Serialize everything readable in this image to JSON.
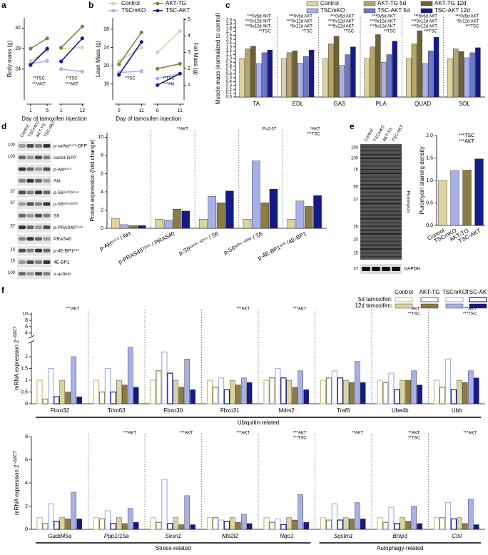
{
  "chart_data": [
    {
      "type": "line",
      "panel_label": "a",
      "ylabel": "Body mass (g)",
      "xlabel": "Day of tamoxifen injection",
      "ylim": [
        18,
        34
      ],
      "yticks": [
        24,
        28,
        32
      ],
      "panels": [
        {
          "xlim": [
            0,
            6
          ],
          "xticks": [
            1,
            5
          ],
          "x": [
            1,
            5
          ],
          "annotations": [
            "**TSC",
            "***AKT"
          ],
          "series": [
            {
              "color": "#ddd3a0",
              "values": [
                25.6,
                27.5
              ]
            },
            {
              "color": "#a7b0e8",
              "values": [
                25.0,
                25.6
              ]
            },
            {
              "color": "#8b7b45",
              "values": [
                28.0,
                30.0
              ]
            },
            {
              "color": "#141a86",
              "values": [
                24.8,
                28.0
              ]
            }
          ]
        },
        {
          "xlim": [
            0,
            13
          ],
          "xticks": [
            1,
            12
          ],
          "x": [
            1,
            12
          ],
          "annotations": [
            "**TSC",
            "***AKT"
          ],
          "series": [
            {
              "color": "#ddd3a0",
              "values": [
                28.0,
                28.2
              ]
            },
            {
              "color": "#a7b0e8",
              "values": [
                24.0,
                23.5
              ]
            },
            {
              "color": "#8b7b45",
              "values": [
                28.2,
                32.3
              ]
            },
            {
              "color": "#141a86",
              "values": [
                25.5,
                30.0
              ]
            }
          ]
        }
      ]
    },
    {
      "type": "line",
      "panel_label": "b",
      "ylabel": "Lean Mass (g)",
      "y2label": "Fat Mass (g)",
      "xlabel": "Day of tamoxifen injection",
      "ylim": [
        12.5,
        30.5
      ],
      "yticks": [
        16,
        20,
        24,
        28
      ],
      "y2lim": [
        0.1,
        5.1
      ],
      "y2ticks": [
        1,
        2,
        3,
        4,
        5
      ],
      "legend": [
        {
          "name": "Control",
          "color": "#ddd3a0"
        },
        {
          "name": "TSCmKO",
          "color": "#a7b0e8"
        },
        {
          "name": "AKT-TG",
          "color": "#8b7b45"
        },
        {
          "name": "TSC-AKT",
          "color": "#141a86"
        }
      ],
      "panels": [
        {
          "xlim": [
            -2,
            13
          ],
          "xticks": [
            0,
            11
          ],
          "x": [
            0,
            11
          ],
          "annotations": [
            "*TSC"
          ],
          "series": [
            {
              "color": "#ddd3a0",
              "values": [
                21.0,
                24.0
              ]
            },
            {
              "color": "#a7b0e8",
              "values": [
                18.5,
                18.8
              ]
            },
            {
              "color": "#8b7b45",
              "values": [
                20.3,
                27.3
              ]
            },
            {
              "color": "#141a86",
              "values": [
                18.0,
                25.2
              ]
            }
          ]
        },
        {
          "xlim": [
            -2,
            13
          ],
          "xticks": [
            0,
            11
          ],
          "x": [
            0,
            11
          ],
          "annotations": [
            "**TSC",
            "***Akt"
          ],
          "series": [
            {
              "color": "#ddd3a0",
              "axis": "y2",
              "values": [
                3.0,
                4.3
              ]
            },
            {
              "color": "#a7b0e8",
              "axis": "y2",
              "values": [
                1.4,
                1.7
              ]
            },
            {
              "color": "#8b7b45",
              "axis": "y2",
              "values": [
                2.0,
                2.3
              ]
            },
            {
              "color": "#141a86",
              "axis": "y2",
              "values": [
                1.0,
                1.7
              ]
            }
          ]
        }
      ]
    },
    {
      "type": "bar",
      "panel_label": "c",
      "ylabel": "Muscle mass (normalized to control)",
      "separators": true,
      "ylim": [
        0,
        2.0
      ],
      "yticks": [
        {
          "value": 0,
          "label": "0.0"
        },
        0.1,
        0.2,
        0.3,
        0.4,
        0.5,
        0.6,
        0.7,
        0.8,
        0.9,
        {
          "value": 1,
          "label": "1.0"
        },
        1.1,
        1.2,
        1.3,
        1.4,
        1.5,
        1.6,
        1.7,
        1.8,
        1.9,
        {
          "value": 2,
          "label": "2.0"
        }
      ],
      "categories": [
        "TA",
        "EDL",
        "GAS",
        "PLA",
        "QUAD",
        "SOL"
      ],
      "series": [
        {
          "name": "Control",
          "color": "#ddd3a0",
          "values": [
            1.0,
            1.0,
            1.0,
            1.0,
            1.0,
            1.0
          ]
        },
        {
          "name": "AKT-TG 5d",
          "color": "#b5a46a",
          "values": [
            1.25,
            1.15,
            1.38,
            1.3,
            1.38,
            1.25
          ]
        },
        {
          "name": "AKT-TG 12d",
          "color": "#6e6235",
          "values": [
            1.32,
            1.2,
            1.58,
            1.62,
            1.72,
            1.18
          ]
        },
        {
          "name": "TSCmKO",
          "color": "#a7b0e8",
          "values": [
            0.87,
            0.88,
            0.82,
            0.9,
            0.87,
            1.02
          ]
        },
        {
          "name": "TSC-AKT 5d",
          "color": "#6c78c8",
          "values": [
            1.15,
            1.05,
            1.1,
            1.1,
            1.2,
            1.15
          ]
        },
        {
          "name": "TSC-AKT 12d",
          "color": "#141a86",
          "values": [
            1.22,
            1.22,
            1.3,
            1.45,
            1.55,
            1.28
          ]
        }
      ],
      "annotations": [
        [
          "***0v5d AKT",
          "***0v12d AKT",
          "***5v12d AKT",
          "**TSC"
        ],
        [
          "***0v5d AKT",
          "***0v12d AKT",
          "*5v12d AKT",
          "*TSC"
        ],
        [
          "***0v5d AKT",
          "***0v12d AKT",
          "***5v12d AKT",
          "*TSC"
        ],
        [
          "***0v5d AKT",
          "***0v12d AKT",
          "***5v12d AKT",
          "**TSC"
        ],
        [
          "***0v5d AKT",
          "***0v12d AKT",
          "***5v12d AKT",
          "***TSC"
        ],
        [
          "***0v5d AKT",
          "*5v12d AKT",
          "***TSC"
        ]
      ]
    },
    {
      "type": "bar",
      "ylabel": "Protein expression (fold change)",
      "separators": true,
      "rotate_labels": true,
      "ylim": [
        0,
        10.5
      ],
      "yticks": [
        0,
        2,
        4,
        6,
        8,
        10
      ],
      "categories": [
        "p-Aktˢ⁴⁷³ / Akt",
        "p-PRAS40ᵀ²⁴⁶ / PRAS40",
        "p-S6ˢ²⁴⁰⁻ˢ²⁴⁴ / S6",
        "p-S6ˢ²³⁵⁻ˢ²³⁶ / S6",
        "p-4E-BP1ˢ⁶⁵ /4E-BP1"
      ],
      "series": [
        {
          "color": "#ddd3a0",
          "values": [
            1.1,
            1.0,
            1.0,
            1.0,
            1.0
          ]
        },
        {
          "color": "#a7b0e8",
          "values": [
            0.4,
            0.9,
            3.5,
            7.4,
            3.0
          ]
        },
        {
          "color": "#8b7b45",
          "values": [
            0.3,
            2.1,
            2.8,
            2.8,
            2.4
          ]
        },
        {
          "color": "#141a86",
          "values": [
            0.3,
            1.9,
            4.1,
            4.3,
            3.6
          ]
        }
      ],
      "annotations": [
        [],
        [
          "**AKT"
        ],
        [],
        [
          "P=0.07"
        ],
        [
          "*AKT",
          "***TSC"
        ]
      ]
    },
    {
      "type": "bar",
      "panel_label": "e",
      "ylabel": "Puromycin staining density",
      "rotate_labels": true,
      "ylim": [
        0,
        2.0
      ],
      "yticks": [
        {
          "value": 0,
          "label": "0.0"
        },
        0.5,
        {
          "value": 1,
          "label": "1.0"
        },
        1.5,
        {
          "value": 2,
          "label": "2.0"
        }
      ],
      "categories": [
        "Control",
        "TSCmKO",
        "AKT-TG",
        "TSC-AKT"
      ],
      "single": true,
      "series": [
        {
          "colors": [
            "#ddd3a0",
            "#a7b0e8",
            "#8b7b45",
            "#141a86"
          ],
          "values": [
            1.0,
            1.22,
            1.23,
            1.48
          ]
        }
      ],
      "chart_annotations": [
        "***TSC",
        "***AKT"
      ]
    },
    {
      "type": "bar",
      "panel_label": "f",
      "ylabel": "mRNA expression 2",
      "ylabel_sup": "−ΔΔCT",
      "separators": true,
      "ylim": [
        0,
        2.6
      ],
      "yticks": [
        0,
        0.5,
        1,
        1.5,
        2
      ],
      "ylim_upper": [
        3,
        10.5
      ],
      "yticks_upper": [
        4,
        6,
        8,
        10
      ],
      "legend": {
        "columns": [
          "Control",
          "AKT-TG",
          "TSCmKO",
          "TSC-AKT"
        ],
        "rows": [
          "5d tamoxifen:",
          "12d tamoxifen:"
        ]
      },
      "categories": [
        "Fbxo32",
        "Trim63",
        "Fbxo30",
        "Fbxo31",
        "Mdm2",
        "Traf6",
        "Ube4b",
        "Ubb"
      ],
      "series": [
        {
          "color": "#c8bd85",
          "style": "open",
          "values": [
            1.0,
            1.0,
            1.0,
            1.0,
            1.0,
            1.0,
            1.0,
            1.0
          ]
        },
        {
          "color": "#8b7b45",
          "style": "open",
          "values": [
            0.2,
            0.5,
            1.4,
            0.7,
            1.1,
            1.1,
            0.9,
            0.7
          ]
        },
        {
          "color": "#a7b0e8",
          "style": "open",
          "values": [
            1.5,
            1.5,
            2.2,
            1.1,
            1.5,
            1.4,
            1.3,
            1.9
          ]
        },
        {
          "color": "#141a86",
          "style": "open",
          "values": [
            0.3,
            0.5,
            1.3,
            0.6,
            1.1,
            1.1,
            0.6,
            0.6
          ]
        },
        {
          "color": "#ddd3a0",
          "values": [
            1.0,
            1.0,
            1.0,
            1.0,
            1.0,
            1.0,
            1.0,
            1.0
          ]
        },
        {
          "color": "#8b7b45",
          "values": [
            0.5,
            0.8,
            0.7,
            0.8,
            0.7,
            0.9,
            1.0,
            0.9
          ]
        },
        {
          "color": "#a7b0e8",
          "values": [
            2.0,
            2.4,
            1.9,
            1.1,
            1.4,
            1.8,
            1.4,
            1.4
          ]
        },
        {
          "color": "#141a86",
          "values": [
            0.3,
            0.7,
            0.6,
            0.9,
            0.6,
            0.9,
            0.8,
            1.1
          ]
        }
      ],
      "annotations": [
        [
          "***AKT"
        ],
        [],
        [],
        [
          "***AKT"
        ],
        [
          "***AKT"
        ],
        [],
        [
          "***AKT",
          "**TSC"
        ],
        [
          "***AKT",
          "***TSC"
        ]
      ],
      "groups": [
        {
          "label": "Ubiquitin-related",
          "from": 0,
          "to": 7
        }
      ]
    },
    {
      "type": "bar",
      "ylabel": "mRNA expression 2",
      "ylabel_sup": "−ΔΔCT",
      "separators": true,
      "italic_categories": true,
      "ylim": [
        0,
        8
      ],
      "yticks": [
        0,
        2,
        4,
        6,
        8
      ],
      "categories": [
        "Gadd45a",
        "Ppp1r15a",
        "Sesn1",
        "Nfe2l2",
        "Nqo1",
        "Sqstm1",
        "Bnip3",
        "Ctsl"
      ],
      "series": [
        {
          "color": "#c8bd85",
          "style": "open",
          "values": [
            1.0,
            1.0,
            1.0,
            1.0,
            1.0,
            1.0,
            1.0,
            1.0
          ]
        },
        {
          "color": "#8b7b45",
          "style": "open",
          "values": [
            0.5,
            0.9,
            0.6,
            1.0,
            0.6,
            0.8,
            0.6,
            1.0
          ]
        },
        {
          "color": "#a7b0e8",
          "style": "open",
          "values": [
            2.2,
            1.6,
            4.3,
            0.8,
            0.9,
            2.2,
            1.9,
            2.3
          ]
        },
        {
          "color": "#141a86",
          "style": "open",
          "values": [
            0.7,
            0.5,
            0.5,
            0.7,
            0.4,
            0.8,
            0.5,
            0.9
          ]
        },
        {
          "color": "#ddd3a0",
          "values": [
            1.0,
            1.0,
            1.0,
            1.0,
            1.0,
            1.0,
            1.0,
            1.0
          ]
        },
        {
          "color": "#8b7b45",
          "values": [
            0.9,
            0.5,
            0.4,
            0.6,
            0.8,
            0.9,
            0.7,
            0.5
          ]
        },
        {
          "color": "#a7b0e8",
          "values": [
            3.2,
            1.8,
            2.9,
            1.3,
            3.0,
            2.3,
            2.0,
            2.6
          ]
        },
        {
          "color": "#141a86",
          "values": [
            0.9,
            0.6,
            0.4,
            0.5,
            0.6,
            0.9,
            0.5,
            0.4
          ]
        }
      ],
      "annotations": [
        [],
        [
          "***AKT"
        ],
        [
          "***AKT"
        ],
        [
          "***AKT"
        ],
        [
          "***AKT",
          "***TSC"
        ],
        [
          "**AKT"
        ],
        [
          "**AKT",
          "**TSC"
        ],
        [
          "***AKT"
        ]
      ],
      "groups": [
        {
          "label": "Stress-related",
          "from": 0,
          "to": 4
        },
        {
          "label": "Autophagy-related",
          "from": 5,
          "to": 7
        }
      ]
    }
  ],
  "blots": [
    {
      "label": "d",
      "lanes": [
        "Control",
        "TSCmKO",
        "AKT-TG",
        "TSC-AKT"
      ],
      "rows": [
        {
          "name": "p-caAktˢ⁴⁷³-GFP",
          "mw": 100
        },
        {
          "name": "caAkt-GFP",
          "mw": 100
        },
        {
          "name": "p-Aktˢ⁴⁷³"
        },
        {
          "name": "Akt"
        },
        {
          "name": "p-S6ˢ²⁴⁰/ˢ²⁴⁴",
          "mw": 37
        },
        {
          "name": "p-S6ˢ²³⁵/ˢ²³⁶",
          "mw": 37
        },
        {
          "name": "S6"
        },
        {
          "name": "p-PRAS40ᵀ²⁴⁶",
          "mw": 37
        },
        {
          "name": "PRAS40"
        },
        {
          "name": "p-4E-BP1ˢ⁶⁵",
          "mw": 15
        },
        {
          "name": "4E-BP1",
          "mw": 15
        },
        {
          "name": "α-actinin",
          "mw": 100
        }
      ]
    },
    {
      "lanes": [
        "Control",
        "TSCmKO",
        "AKT-TG",
        "TSC-AKT"
      ],
      "markers": [
        150,
        100,
        75,
        50,
        37,
        25,
        20,
        15
      ],
      "rows": [
        {
          "name": "Puromycin"
        },
        {
          "name": "GAPDH",
          "mw": 37
        }
      ]
    }
  ]
}
